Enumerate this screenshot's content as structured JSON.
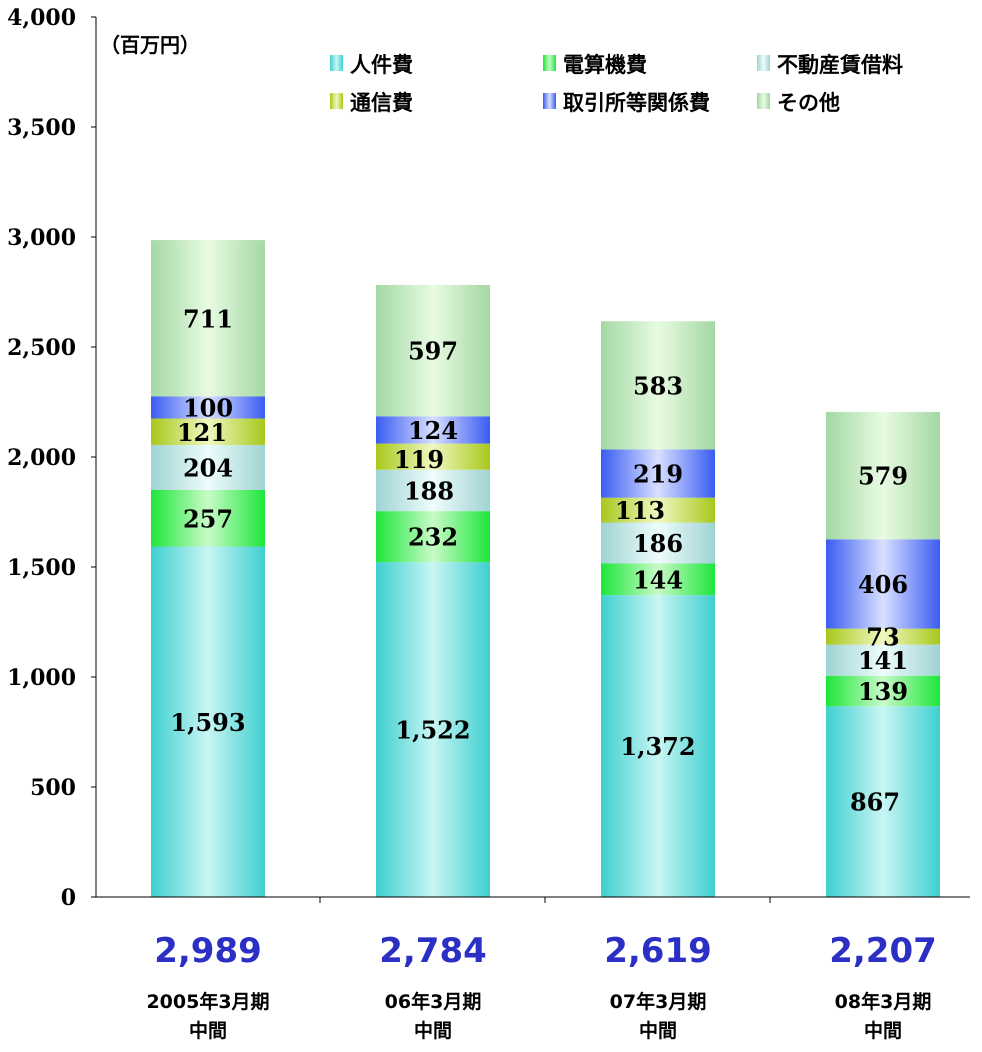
{
  "chart_data": {
    "type": "bar",
    "stacked": true,
    "unit_label": "（百万円）",
    "ylim": [
      0,
      4000
    ],
    "y_ticks": [
      0,
      500,
      1000,
      1500,
      2000,
      2500,
      3000,
      3500,
      4000
    ],
    "y_tick_labels": [
      "0",
      "500",
      "1,000",
      "1,500",
      "2,000",
      "2,500",
      "3,000",
      "3,500",
      "4,000"
    ],
    "categories": [
      {
        "line1": "2005年3月期",
        "line2": "中間"
      },
      {
        "line1": "06年3月期",
        "line2": "中間"
      },
      {
        "line1": "07年3月期",
        "line2": "中間"
      },
      {
        "line1": "08年3月期",
        "line2": "中間"
      }
    ],
    "totals": [
      2989,
      2784,
      2619,
      2207
    ],
    "total_labels": [
      "2,989",
      "2,784",
      "2,619",
      "2,207"
    ],
    "total_color": "#2b2fc4",
    "series": [
      {
        "name": "人件費",
        "color_edge": "#3ecfcf",
        "color_mid": "#c8f6f4",
        "values": [
          1593,
          1522,
          1372,
          867
        ],
        "labels": [
          "1,593",
          "1,522",
          "1,372",
          "867"
        ]
      },
      {
        "name": "電算機費",
        "color_edge": "#1ee63a",
        "color_mid": "#c8fbc8",
        "values": [
          257,
          232,
          144,
          139
        ],
        "labels": [
          "257",
          "232",
          "144",
          "139"
        ]
      },
      {
        "name": "不動産賃借料",
        "color_edge": "#9fd3d3",
        "color_mid": "#eefcfc",
        "values": [
          204,
          188,
          186,
          141
        ],
        "labels": [
          "204",
          "188",
          "186",
          "141"
        ]
      },
      {
        "name": "通信費",
        "color_edge": "#a8c81c",
        "color_mid": "#f0f8c0",
        "values": [
          121,
          119,
          113,
          73
        ],
        "labels": [
          "121",
          "119",
          "113",
          "73"
        ]
      },
      {
        "name": "取引所等関係費",
        "color_edge": "#3a5cf2",
        "color_mid": "#d8e0ff",
        "values": [
          100,
          124,
          219,
          406
        ],
        "labels": [
          "100",
          "124",
          "219",
          "406"
        ]
      },
      {
        "name": "その他",
        "color_edge": "#a3d8a3",
        "color_mid": "#e8fbe3",
        "values": [
          711,
          597,
          583,
          579
        ],
        "labels": [
          "711",
          "597",
          "583",
          "579"
        ]
      }
    ],
    "legend_position": "top-right",
    "grid": false
  }
}
